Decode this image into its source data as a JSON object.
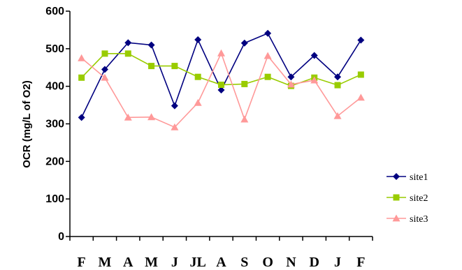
{
  "chart_data": {
    "type": "line",
    "ylabel": "OCR (mg/L of O2)",
    "xlabel": "",
    "ylim": [
      0,
      600
    ],
    "yticks": [
      "0",
      "100",
      "200",
      "300",
      "400",
      "500",
      "600"
    ],
    "categories": [
      "F",
      "M",
      "A",
      "M",
      "J",
      "JL",
      "A",
      "S",
      "O",
      "N",
      "D",
      "J",
      "F"
    ],
    "legend_position": "right",
    "grid": false,
    "series": [
      {
        "name": "site1",
        "color": "#000080",
        "marker": "diamond",
        "values": [
          317,
          445,
          516,
          510,
          348,
          524,
          390,
          515,
          541,
          425,
          482,
          425,
          523
        ]
      },
      {
        "name": "site2",
        "color": "#99cc00",
        "marker": "square",
        "values": [
          423,
          487,
          487,
          454,
          454,
          425,
          404,
          406,
          425,
          401,
          423,
          403,
          431
        ]
      },
      {
        "name": "site3",
        "color": "#ff9999",
        "marker": "triangle",
        "values": [
          475,
          423,
          317,
          318,
          291,
          356,
          488,
          312,
          481,
          405,
          416,
          321,
          370
        ]
      }
    ]
  }
}
